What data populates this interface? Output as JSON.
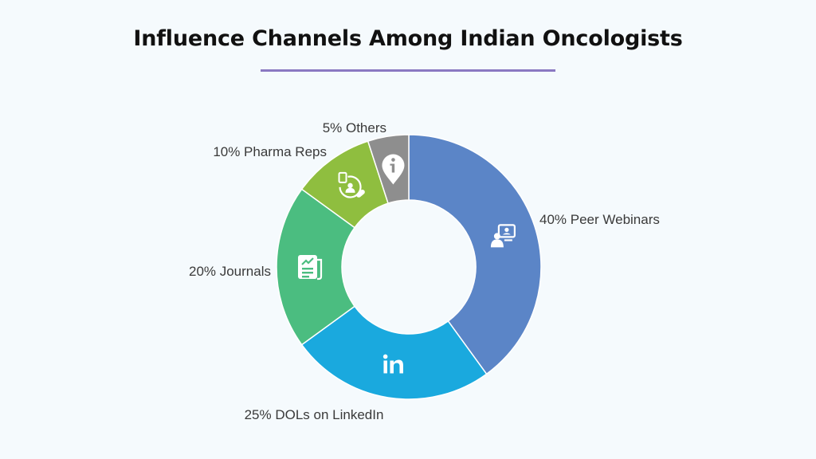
{
  "chart_data": {
    "type": "pie",
    "title": "Influence Channels Among Indian Oncologists",
    "style": "donut",
    "slices": [
      {
        "label": "40% Peer Webinars",
        "value": 40,
        "color": "#5b85c7",
        "icon": "webinar-icon"
      },
      {
        "label": "25% DOLs on LinkedIn",
        "value": 25,
        "color": "#1aa9de",
        "icon": "linkedin-icon"
      },
      {
        "label": "20% Journals",
        "value": 20,
        "color": "#4bbd80",
        "icon": "journal-icon"
      },
      {
        "label": "10% Pharma Reps",
        "value": 10,
        "color": "#8fbe3f",
        "icon": "pharma-rep-icon"
      },
      {
        "label": "5% Others",
        "value": 5,
        "color": "#8e8e8e",
        "icon": "info-pin-icon"
      }
    ],
    "accent_color": "#8a78c2"
  }
}
